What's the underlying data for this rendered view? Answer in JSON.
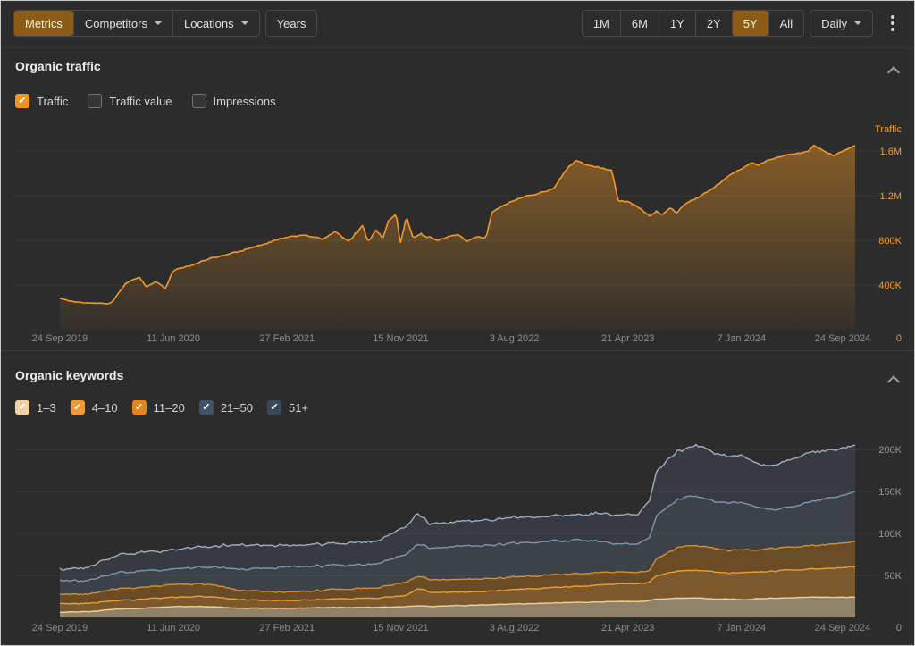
{
  "colors": {
    "accent": "#f0951f",
    "selected_button_bg": "#8a5c15"
  },
  "toolbar": {
    "nav": [
      {
        "label": "Metrics",
        "selected": true,
        "caret": false
      },
      {
        "label": "Competitors",
        "selected": false,
        "caret": true
      },
      {
        "label": "Locations",
        "selected": false,
        "caret": true
      },
      {
        "label": "Years",
        "selected": false,
        "caret": false
      }
    ],
    "ranges": [
      {
        "label": "1M",
        "selected": false
      },
      {
        "label": "6M",
        "selected": false
      },
      {
        "label": "1Y",
        "selected": false
      },
      {
        "label": "2Y",
        "selected": false
      },
      {
        "label": "5Y",
        "selected": true
      },
      {
        "label": "All",
        "selected": false
      }
    ],
    "granularity_label": "Daily"
  },
  "traffic_section": {
    "title": "Organic traffic",
    "checkboxes": [
      {
        "label": "Traffic",
        "checked": true,
        "color": "#f0951f"
      },
      {
        "label": "Traffic value",
        "checked": false,
        "color": null
      },
      {
        "label": "Impressions",
        "checked": false,
        "color": null
      }
    ]
  },
  "keywords_section": {
    "title": "Organic keywords",
    "checkboxes": [
      {
        "label": "1–3",
        "checked": true,
        "color": "#f4d3a2"
      },
      {
        "label": "4–10",
        "checked": true,
        "color": "#f09a35"
      },
      {
        "label": "11–20",
        "checked": true,
        "color": "#e5861d"
      },
      {
        "label": "21–50",
        "checked": true,
        "color": "#41516a"
      },
      {
        "label": "51+",
        "checked": true,
        "color": "#394757"
      }
    ]
  },
  "chart_data": [
    {
      "type": "area",
      "title": "Organic traffic",
      "axis_title": "Traffic",
      "series_name": "Traffic",
      "unit": "thousands",
      "color": "#f5992b",
      "ylim": [
        0,
        1825
      ],
      "zero_label": "0",
      "y_ticks": [
        {
          "value": 1600,
          "label": "1.6M"
        },
        {
          "value": 1200,
          "label": "1.2M"
        },
        {
          "value": 800,
          "label": "800K"
        },
        {
          "value": 400,
          "label": "400K"
        }
      ],
      "x_tick_labels": [
        "24 Sep 2019",
        "11 Jun 2020",
        "27 Feb 2021",
        "15 Nov 2021",
        "3 Aug 2022",
        "21 Apr 2023",
        "7 Jan 2024",
        "24 Sep 2024"
      ],
      "points": [
        [
          0.0,
          285
        ],
        [
          0.012,
          255
        ],
        [
          0.03,
          240
        ],
        [
          0.048,
          238
        ],
        [
          0.062,
          232
        ],
        [
          0.066,
          250
        ],
        [
          0.083,
          420
        ],
        [
          0.1,
          470
        ],
        [
          0.109,
          385
        ],
        [
          0.122,
          430
        ],
        [
          0.133,
          365
        ],
        [
          0.142,
          530
        ],
        [
          0.167,
          585
        ],
        [
          0.195,
          650
        ],
        [
          0.223,
          700
        ],
        [
          0.251,
          755
        ],
        [
          0.274,
          810
        ],
        [
          0.286,
          830
        ],
        [
          0.307,
          850
        ],
        [
          0.33,
          810
        ],
        [
          0.346,
          875
        ],
        [
          0.363,
          795
        ],
        [
          0.374,
          870
        ],
        [
          0.38,
          945
        ],
        [
          0.388,
          780
        ],
        [
          0.397,
          895
        ],
        [
          0.406,
          815
        ],
        [
          0.414,
          995
        ],
        [
          0.423,
          1040
        ],
        [
          0.428,
          770
        ],
        [
          0.436,
          1005
        ],
        [
          0.444,
          820
        ],
        [
          0.453,
          850
        ],
        [
          0.464,
          835
        ],
        [
          0.475,
          800
        ],
        [
          0.488,
          830
        ],
        [
          0.5,
          855
        ],
        [
          0.512,
          790
        ],
        [
          0.525,
          835
        ],
        [
          0.533,
          815
        ],
        [
          0.537,
          845
        ],
        [
          0.543,
          1050
        ],
        [
          0.554,
          1095
        ],
        [
          0.572,
          1165
        ],
        [
          0.587,
          1195
        ],
        [
          0.604,
          1225
        ],
        [
          0.621,
          1265
        ],
        [
          0.636,
          1425
        ],
        [
          0.64,
          1460
        ],
        [
          0.649,
          1515
        ],
        [
          0.66,
          1480
        ],
        [
          0.671,
          1465
        ],
        [
          0.683,
          1440
        ],
        [
          0.694,
          1425
        ],
        [
          0.702,
          1160
        ],
        [
          0.711,
          1140
        ],
        [
          0.714,
          1150
        ],
        [
          0.728,
          1095
        ],
        [
          0.742,
          1015
        ],
        [
          0.75,
          1060
        ],
        [
          0.758,
          1030
        ],
        [
          0.767,
          1095
        ],
        [
          0.776,
          1045
        ],
        [
          0.784,
          1115
        ],
        [
          0.795,
          1155
        ],
        [
          0.812,
          1225
        ],
        [
          0.828,
          1300
        ],
        [
          0.84,
          1375
        ],
        [
          0.851,
          1420
        ],
        [
          0.858,
          1440
        ],
        [
          0.868,
          1495
        ],
        [
          0.879,
          1475
        ],
        [
          0.89,
          1515
        ],
        [
          0.907,
          1555
        ],
        [
          0.924,
          1575
        ],
        [
          0.941,
          1600
        ],
        [
          0.948,
          1645
        ],
        [
          0.957,
          1615
        ],
        [
          0.966,
          1580
        ],
        [
          0.974,
          1560
        ],
        [
          0.985,
          1600
        ],
        [
          0.993,
          1630
        ],
        [
          1.0,
          1650
        ]
      ]
    },
    {
      "type": "stacked-area",
      "title": "Organic keywords",
      "unit": "thousands",
      "ylim": [
        0,
        215
      ],
      "zero_label": "0",
      "y_ticks": [
        {
          "value": 200,
          "label": "200K"
        },
        {
          "value": 150,
          "label": "150K"
        },
        {
          "value": 100,
          "label": "100K"
        },
        {
          "value": 50,
          "label": "50K"
        }
      ],
      "x_tick_labels": [
        "24 Sep 2019",
        "11 Jun 2020",
        "27 Feb 2021",
        "15 Nov 2021",
        "3 Aug 2022",
        "21 Apr 2023",
        "7 Jan 2024",
        "24 Sep 2024"
      ],
      "t": [
        0.0,
        0.038,
        0.072,
        0.105,
        0.142,
        0.184,
        0.229,
        0.285,
        0.341,
        0.397,
        0.436,
        0.45,
        0.464,
        0.498,
        0.531,
        0.572,
        0.61,
        0.655,
        0.699,
        0.728,
        0.742,
        0.75,
        0.761,
        0.778,
        0.789,
        0.806,
        0.823,
        0.84,
        0.858,
        0.874,
        0.893,
        0.913,
        0.935,
        0.957,
        0.98,
        1.0
      ],
      "series": [
        {
          "name": "1–3",
          "stroke": "#f7ddb4",
          "fill": "rgba(244,213,166,0.50)",
          "values": [
            6,
            7,
            10,
            11,
            13,
            13,
            11,
            11,
            12,
            12,
            13,
            14,
            13,
            14,
            15,
            16,
            17,
            18,
            19,
            19,
            20,
            22,
            22,
            23,
            23,
            23,
            22,
            22,
            21,
            22,
            23,
            23,
            24,
            24,
            24,
            24
          ]
        },
        {
          "name": "4–10",
          "stroke": "#f7a43c",
          "fill": "rgba(233,153,47,0.42)",
          "values": [
            10,
            10,
            10,
            11,
            11,
            12,
            10,
            9,
            10,
            11,
            13,
            21,
            17,
            16,
            16,
            17,
            18,
            19,
            21,
            21,
            22,
            28,
            30,
            32,
            33,
            33,
            32,
            31,
            32,
            32,
            32,
            33,
            33,
            34,
            35,
            36
          ]
        },
        {
          "name": "11–20",
          "stroke": "#e28e2a",
          "fill": "rgba(205,125,30,0.38)",
          "values": [
            11,
            11,
            14,
            14,
            15,
            15,
            11,
            10,
            11,
            12,
            16,
            15,
            15,
            15,
            15,
            15,
            15,
            15,
            14,
            13,
            14,
            20,
            23,
            28,
            29,
            29,
            28,
            27,
            27,
            26,
            27,
            27,
            28,
            28,
            29,
            30
          ]
        },
        {
          "name": "21–50",
          "stroke": "#8599ad",
          "fill": "rgba(120,145,175,0.22)",
          "values": [
            16,
            16,
            19,
            19,
            18,
            20,
            25,
            30,
            29,
            28,
            33,
            38,
            38,
            39,
            40,
            40,
            40,
            40,
            34,
            34,
            39,
            50,
            55,
            57,
            59,
            58,
            56,
            56,
            56,
            52,
            46,
            47,
            51,
            54,
            56,
            59
          ]
        },
        {
          "name": "51+",
          "stroke": "#9db0c3",
          "fill": "rgba(105,130,160,0.18)",
          "values": [
            13,
            16,
            21,
            22,
            23,
            24,
            29,
            25,
            26,
            27,
            33,
            36,
            29,
            29,
            30,
            30,
            30,
            30,
            35,
            35,
            45,
            52,
            55,
            58,
            58,
            61,
            58,
            56,
            56,
            52,
            51,
            56,
            58,
            58,
            56,
            56
          ]
        }
      ]
    }
  ]
}
